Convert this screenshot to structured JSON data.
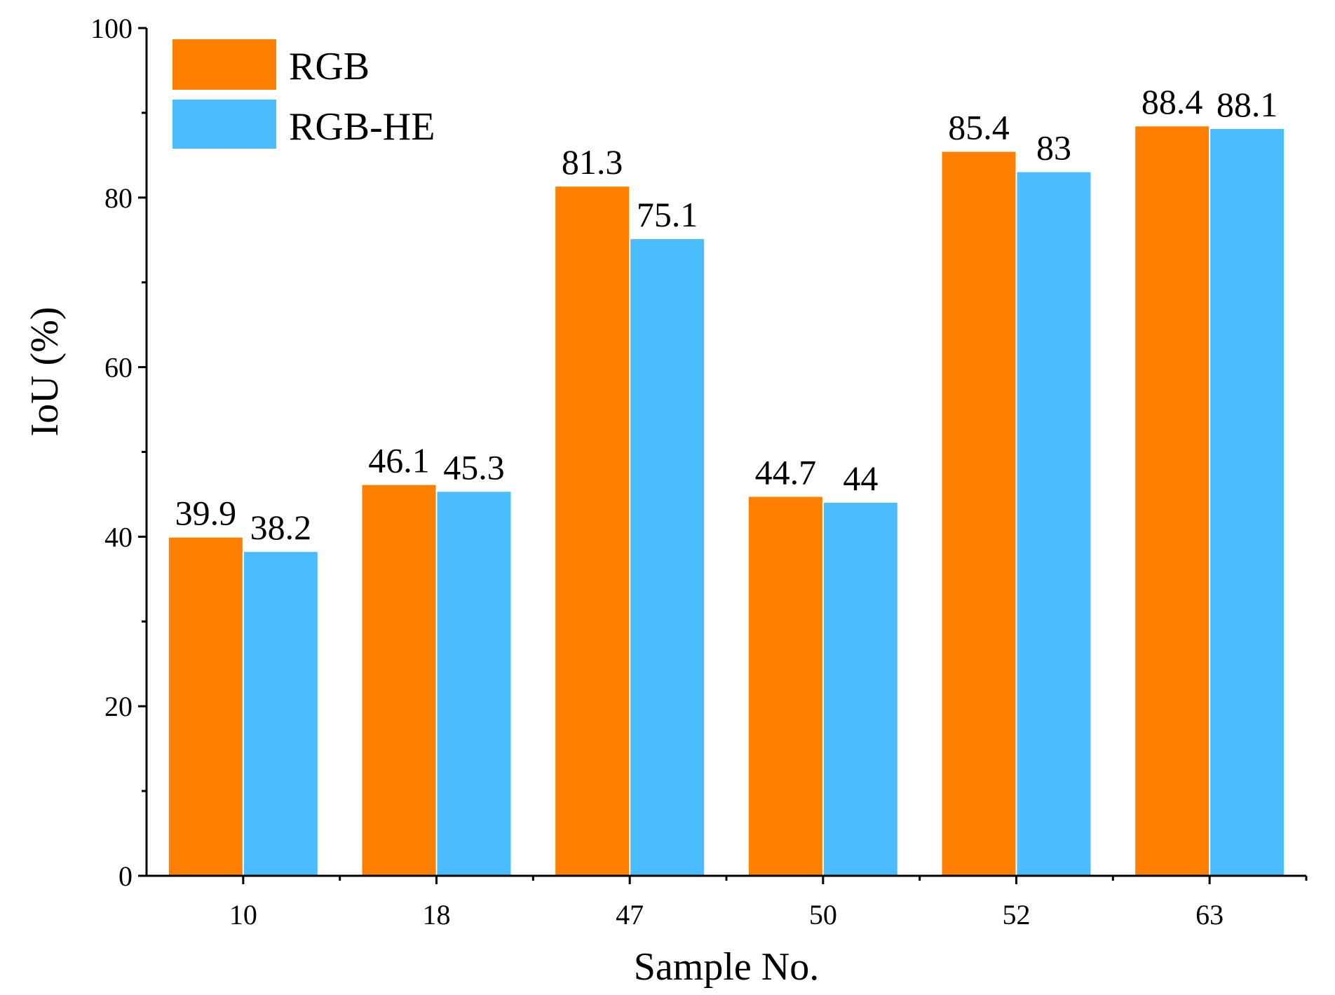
{
  "chart_data": {
    "type": "bar",
    "title": "",
    "xlabel": "Sample No.",
    "ylabel": "IoU (%)",
    "ylim": [
      0,
      100
    ],
    "yticks": [
      0,
      20,
      40,
      60,
      80,
      100
    ],
    "categories": [
      "10",
      "18",
      "47",
      "50",
      "52",
      "63"
    ],
    "series": [
      {
        "name": "RGB",
        "color": "#FF8000",
        "values": [
          39.9,
          46.1,
          81.3,
          44.7,
          85.4,
          88.4
        ],
        "labels": [
          "39.9",
          "46.1",
          "81.3",
          "44.7",
          "85.4",
          "88.4"
        ]
      },
      {
        "name": "RGB-HE",
        "color": "#4BBDFF",
        "values": [
          38.2,
          45.3,
          75.1,
          44,
          83,
          88.1
        ],
        "labels": [
          "38.2",
          "45.3",
          "75.1",
          "44",
          "83",
          "88.1"
        ]
      }
    ],
    "legend_position": "top-left",
    "grid": false
  }
}
